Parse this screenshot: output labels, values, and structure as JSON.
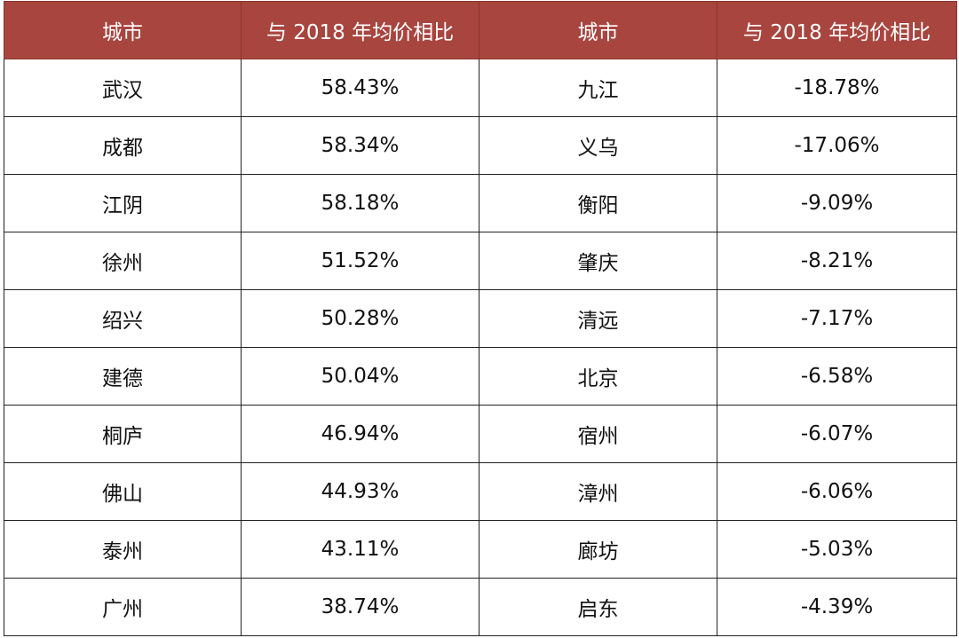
{
  "table": {
    "header": [
      "城市",
      "与 2018 年均价相比",
      "城市",
      "与 2018 年均价相比"
    ],
    "rows": [
      [
        "武汉",
        "58.43%",
        "九江",
        "-18.78%"
      ],
      [
        "成都",
        "58.34%",
        "义乌",
        "-17.06%"
      ],
      [
        "江阴",
        "58.18%",
        "衡阳",
        "-9.09%"
      ],
      [
        "徐州",
        "51.52%",
        "肇庆",
        "-8.21%"
      ],
      [
        "绍兴",
        "50.28%",
        "清远",
        "-7.17%"
      ],
      [
        "建德",
        "50.04%",
        "北京",
        "-6.58%"
      ],
      [
        "桐庐",
        "46.94%",
        "宿州",
        "-6.07%"
      ],
      [
        "佛山",
        "44.93%",
        "漳州",
        "-6.06%"
      ],
      [
        "泰州",
        "43.11%",
        "廊坊",
        "-5.03%"
      ],
      [
        "广州",
        "38.74%",
        "启东",
        "-4.39%"
      ]
    ]
  }
}
